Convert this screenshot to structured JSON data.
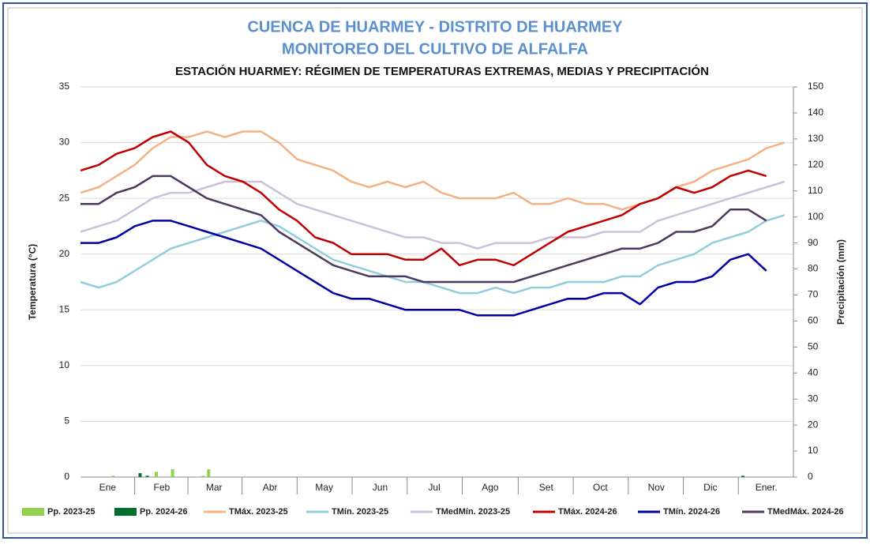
{
  "chart_data": {
    "type": "line",
    "title": "CUENCA DE HUARMEY - DISTRITO DE HUARMEY",
    "subtitle": "MONITOREO DEL CULTIVO DE ALFALFA",
    "chart_title": "ESTACIÓN HUARMEY: RÉGIMEN DE TEMPERATURAS EXTREMAS, MEDIAS Y PRECIPITACIÓN",
    "y_label": "Temperatura (°C)",
    "y2_label": "Precipitación (mm)",
    "xlim": [
      0,
      395
    ],
    "xticks": [
      {
        "value": 15,
        "label": "Ene"
      },
      {
        "value": 45,
        "label": "Feb"
      },
      {
        "value": 74,
        "label": "Mar"
      },
      {
        "value": 105,
        "label": "Abr"
      },
      {
        "value": 135,
        "label": "May"
      },
      {
        "value": 166,
        "label": "Jun"
      },
      {
        "value": 196,
        "label": "Jul"
      },
      {
        "value": 227,
        "label": "Ago"
      },
      {
        "value": 258,
        "label": "Set"
      },
      {
        "value": 288,
        "label": "Oct"
      },
      {
        "value": 319,
        "label": "Nov"
      },
      {
        "value": 349,
        "label": "Dic"
      },
      {
        "value": 380,
        "label": "Ener."
      }
    ],
    "ylim": [
      0,
      35
    ],
    "yticks": [
      0,
      5,
      10,
      15,
      20,
      25,
      30,
      35
    ],
    "y2lim": [
      0,
      150
    ],
    "y2ticks": [
      0,
      10,
      20,
      30,
      40,
      50,
      60,
      70,
      80,
      90,
      100,
      110,
      120,
      130,
      140,
      150
    ],
    "grid": true,
    "x": [
      0,
      10,
      20,
      30,
      40,
      50,
      60,
      70,
      80,
      90,
      100,
      110,
      120,
      130,
      140,
      150,
      160,
      170,
      180,
      190,
      200,
      210,
      220,
      230,
      240,
      250,
      260,
      270,
      280,
      290,
      300,
      310,
      320,
      330,
      340,
      350,
      360,
      370,
      380,
      390
    ],
    "series": [
      {
        "name": "Pp. 2023-25",
        "type": "bar",
        "axis": "y2",
        "color": "#92d050",
        "x": [
          18,
          42,
          51,
          68,
          71
        ],
        "values": [
          0.5,
          2,
          3,
          0.5,
          3
        ]
      },
      {
        "name": "Pp. 2024-26",
        "type": "bar",
        "axis": "y2",
        "color": "#00702e",
        "x": [
          33,
          37,
          367
        ],
        "values": [
          1.5,
          0.5,
          0.5
        ]
      },
      {
        "name": "TMáx. 2023-25",
        "color": "#f4b183",
        "values": [
          25.5,
          26,
          27,
          28,
          29.5,
          30.5,
          30.5,
          31,
          30.5,
          31,
          31,
          30,
          28.5,
          28,
          27.5,
          26.5,
          26,
          26.5,
          26,
          26.5,
          25.5,
          25,
          25,
          25,
          25.5,
          24.5,
          24.5,
          25,
          24.5,
          24.5,
          24,
          24.5,
          25,
          26,
          26.5,
          27.5,
          28,
          28.5,
          29.5,
          30
        ]
      },
      {
        "name": "TMín. 2023-25",
        "color": "#92cddc",
        "values": [
          17.5,
          17,
          17.5,
          18.5,
          19.5,
          20.5,
          21,
          21.5,
          22,
          22.5,
          23,
          22.5,
          21.5,
          20.5,
          19.5,
          19,
          18.5,
          18,
          17.5,
          17.5,
          17,
          16.5,
          16.5,
          17,
          16.5,
          17,
          17,
          17.5,
          17.5,
          17.5,
          18,
          18,
          19,
          19.5,
          20,
          21,
          21.5,
          22,
          23,
          23.5
        ]
      },
      {
        "name": "TMedMín. 2023-25",
        "color": "#ccc0da",
        "values": [
          22,
          22.5,
          23,
          24,
          25,
          25.5,
          25.5,
          26,
          26.5,
          26.5,
          26.5,
          25.5,
          24.5,
          24,
          23.5,
          23,
          22.5,
          22,
          21.5,
          21.5,
          21,
          21,
          20.5,
          21,
          21,
          21,
          21.5,
          21.5,
          21.5,
          22,
          22,
          22,
          23,
          23.5,
          24,
          24.5,
          25,
          25.5,
          26,
          26.5
        ]
      },
      {
        "name": "TMáx. 2024-26",
        "color": "#c00000",
        "values": [
          27.5,
          28,
          29,
          29.5,
          30.5,
          31,
          30,
          28,
          27,
          26.5,
          25.5,
          24,
          23,
          21.5,
          21,
          20,
          20,
          20,
          19.5,
          19.5,
          20.5,
          19,
          19.5,
          19.5,
          19,
          20,
          21,
          22,
          22.5,
          23,
          23.5,
          24.5,
          25,
          26,
          25.5,
          26,
          27,
          27.5,
          27,
          null
        ]
      },
      {
        "name": "TMín. 2024-26",
        "color": "#0000a0",
        "values": [
          21,
          21,
          21.5,
          22.5,
          23,
          23,
          22.5,
          22,
          21.5,
          21,
          20.5,
          19.5,
          18.5,
          17.5,
          16.5,
          16,
          16,
          15.5,
          15,
          15,
          15,
          15,
          14.5,
          14.5,
          14.5,
          15,
          15.5,
          16,
          16,
          16.5,
          16.5,
          15.5,
          17,
          17.5,
          17.5,
          18,
          19.5,
          20,
          18.5,
          null
        ]
      },
      {
        "name": "TMedMáx. 2024-26",
        "color": "#4b3a5e",
        "values": [
          24.5,
          24.5,
          25.5,
          26,
          27,
          27,
          26,
          25,
          24.5,
          24,
          23.5,
          22,
          21,
          20,
          19,
          18.5,
          18,
          18,
          18,
          17.5,
          17.5,
          17.5,
          17.5,
          17.5,
          17.5,
          18,
          18.5,
          19,
          19.5,
          20,
          20.5,
          20.5,
          21,
          22,
          22,
          22.5,
          24,
          24,
          23,
          null
        ]
      }
    ]
  }
}
